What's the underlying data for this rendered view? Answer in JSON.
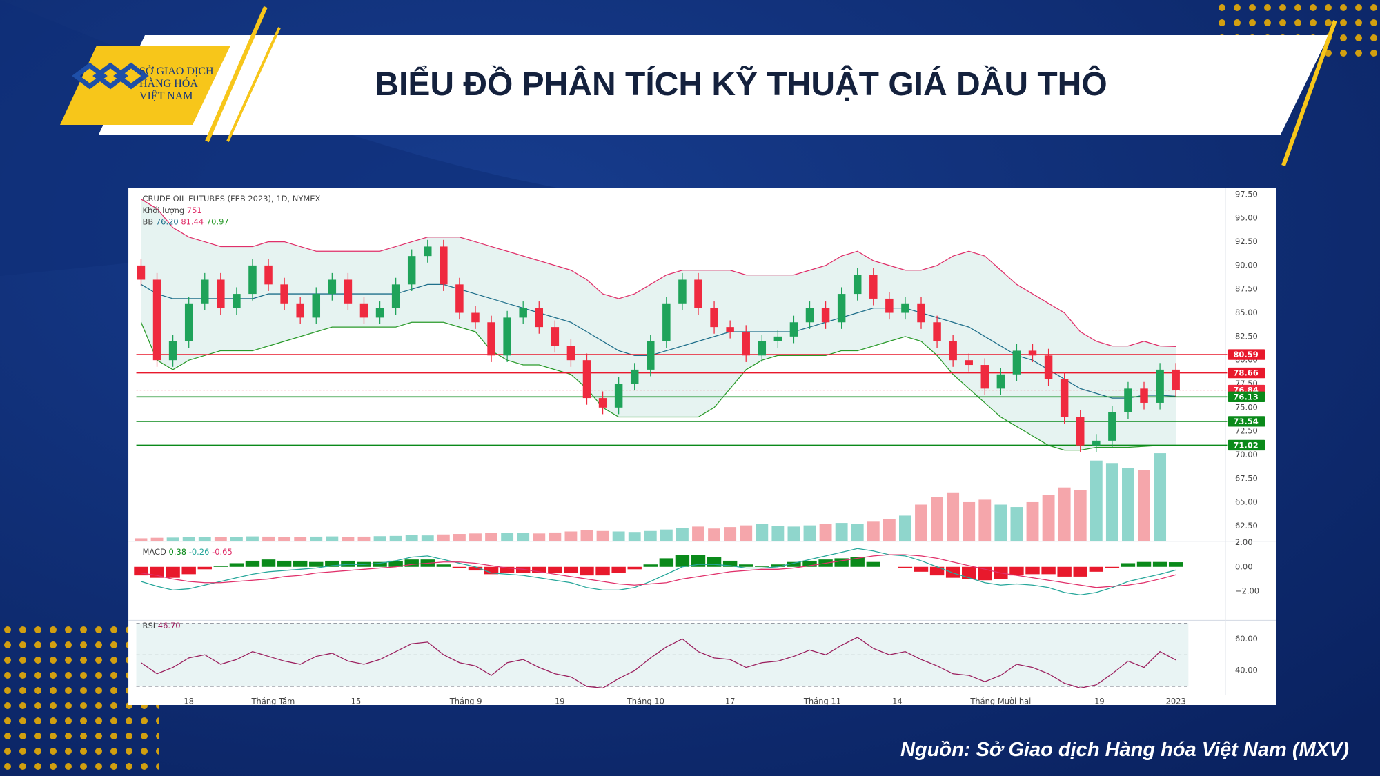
{
  "header": {
    "title": "BIỂU ĐỒ PHÂN TÍCH KỸ THUẬT GIÁ DẦU THÔ",
    "logo": [
      "SỞ GIAO DỊCH",
      "HÀNG HÓA",
      "VIỆT NAM"
    ]
  },
  "source": "Nguồn: Sở Giao dịch Hàng hóa Việt Nam (MXV)",
  "chart_data": {
    "type": "candlestick",
    "legend": {
      "title": "CRUDE OIL FUTURES (FEB 2023), 1D, NYMEX",
      "volume": {
        "label": "Khối lượng",
        "value": "751"
      },
      "bb": {
        "label": "BB",
        "values": [
          "76.20",
          "81.44",
          "70.97"
        ]
      },
      "macd": {
        "label": "MACD",
        "values": [
          "0.38",
          "-0.26",
          "-0.65"
        ]
      },
      "rsi": {
        "label": "RSI",
        "value": "46.70"
      }
    },
    "colors": {
      "up": "#1fa35a",
      "down": "#ef2a3f",
      "volume_up": "#8fd6cc",
      "volume_down": "#f5a6ab",
      "bb_upper": "#e0306a",
      "bb_mid": "#1f6f8b",
      "bb_lower": "#2a9a2a",
      "bb_fill": "#e6f3f1",
      "macd": "#26a69a",
      "signal": "#e0306a",
      "hist_up": "#0a8a1a",
      "hist_down": "#e8192c",
      "rsi": "#9b1f5e",
      "rsi_fill": "#e9f4f4"
    },
    "xlim": [
      -0.3,
      68
    ],
    "xticks": [
      {
        "value": 3,
        "label": "18"
      },
      {
        "value": 8.3,
        "label": "Tháng Tám"
      },
      {
        "value": 13.5,
        "label": "15"
      },
      {
        "value": 20.4,
        "label": "Tháng 9"
      },
      {
        "value": 26.3,
        "label": "19"
      },
      {
        "value": 31.7,
        "label": "Tháng 10"
      },
      {
        "value": 37,
        "label": "17"
      },
      {
        "value": 42.8,
        "label": "Tháng 11"
      },
      {
        "value": 47.5,
        "label": "14"
      },
      {
        "value": 54,
        "label": "Tháng Mười hai"
      },
      {
        "value": 60.2,
        "label": "19"
      },
      {
        "value": 65,
        "label": "2023"
      }
    ],
    "ylim": [
      60.88,
      98.15
    ],
    "yticks": [
      {
        "value": 62.5,
        "label": "62.50"
      },
      {
        "value": 65,
        "label": "65.00"
      },
      {
        "value": 67.5,
        "label": "67.50"
      },
      {
        "value": 70,
        "label": "70.00"
      },
      {
        "value": 72.5,
        "label": "72.50"
      },
      {
        "value": 75,
        "label": "75.00"
      },
      {
        "value": 77.5,
        "label": "77.50"
      },
      {
        "value": 80,
        "label": "80.00"
      },
      {
        "value": 82.5,
        "label": "82.50"
      },
      {
        "value": 85,
        "label": "85.00"
      },
      {
        "value": 87.5,
        "label": "87.50"
      },
      {
        "value": 90,
        "label": "90.00"
      },
      {
        "value": 92.5,
        "label": "92.50"
      },
      {
        "value": 95,
        "label": "95.00"
      },
      {
        "value": 97.5,
        "label": "97.50"
      }
    ],
    "levels": [
      {
        "value": 80.59,
        "color": "#e8192c"
      },
      {
        "value": 78.66,
        "color": "#e8192c"
      },
      {
        "value": 76.84,
        "color": "#ef2a3f",
        "dotted": true
      },
      {
        "value": 76.13,
        "color": "#0a8a1a"
      },
      {
        "value": 73.54,
        "color": "#0a8a1a"
      },
      {
        "value": 71.02,
        "color": "#0a8a1a"
      }
    ],
    "open": [
      90,
      88.5,
      80,
      82,
      86,
      88.5,
      85.5,
      87,
      90,
      88,
      86,
      84.5,
      87,
      88.5,
      86,
      84.5,
      85.5,
      88,
      91,
      92,
      88,
      85,
      84,
      80.5,
      84.5,
      85.5,
      83.5,
      81.5,
      80,
      76,
      75,
      77.5,
      79,
      82,
      86,
      88.5,
      85.5,
      83.5,
      83,
      80.5,
      82,
      82.5,
      84,
      85.5,
      84,
      87,
      89,
      86.5,
      85,
      86,
      84,
      82,
      80,
      79.5,
      77,
      78.5,
      81,
      80.5,
      78,
      74,
      71,
      71.5,
      74.5,
      77,
      75.5,
      79
    ],
    "high": [
      90.7,
      89.2,
      82.7,
      86.7,
      89.2,
      89.2,
      87.7,
      90.7,
      90.7,
      88.7,
      86.7,
      87.7,
      89.2,
      89.2,
      86.7,
      86.2,
      88.7,
      91.7,
      92.7,
      92.7,
      88.7,
      85.7,
      84.7,
      85.2,
      86.2,
      86.2,
      84.2,
      82.2,
      80.7,
      76.7,
      78.2,
      79.7,
      82.7,
      86.7,
      89.2,
      89.2,
      86.2,
      84.2,
      83.7,
      82.7,
      83.2,
      84.7,
      86.2,
      86.2,
      87.7,
      89.7,
      89.7,
      87.2,
      86.7,
      86.7,
      84.7,
      82.7,
      80.7,
      80.2,
      79.2,
      81.7,
      81.7,
      81.2,
      78.7,
      74.7,
      72.2,
      75.2,
      77.7,
      77.7,
      79.7,
      79.7
    ],
    "low": [
      87.8,
      79.3,
      79.3,
      81.3,
      85.3,
      84.8,
      84.8,
      86.3,
      87.3,
      85.3,
      83.8,
      83.8,
      86.3,
      85.3,
      83.8,
      83.8,
      84.8,
      87.3,
      90.3,
      87.3,
      84.3,
      83.3,
      79.8,
      79.8,
      83.8,
      82.8,
      80.8,
      79.3,
      75.3,
      74.3,
      74.3,
      76.8,
      78.3,
      81.3,
      85.3,
      84.8,
      82.8,
      82.3,
      79.8,
      79.8,
      81.3,
      81.8,
      83.3,
      83.3,
      83.3,
      86.3,
      85.8,
      84.3,
      84.3,
      83.3,
      81.3,
      79.3,
      78.8,
      76.3,
      76.3,
      77.8,
      79.8,
      77.3,
      73.3,
      70.3,
      70.3,
      70.8,
      73.8,
      74.8,
      74.8,
      76.14
    ],
    "close": [
      88.5,
      80,
      82,
      86,
      88.5,
      85.5,
      87,
      90,
      88,
      86,
      84.5,
      87,
      88.5,
      86,
      84.5,
      85.5,
      88,
      91,
      92,
      88,
      85,
      84,
      80.5,
      84.5,
      85.5,
      83.5,
      81.5,
      80,
      76,
      75,
      77.5,
      79,
      82,
      86,
      88.5,
      85.5,
      83.5,
      83,
      80.5,
      82,
      82.5,
      84,
      85.5,
      84,
      87,
      89,
      86.5,
      85,
      86,
      84,
      82,
      80,
      79.5,
      77,
      78.5,
      81,
      80.5,
      78,
      74,
      71,
      71.5,
      74.5,
      77,
      75.5,
      79,
      76.84
    ],
    "bb_upper": [
      97,
      96,
      94,
      93,
      92.5,
      92,
      92,
      92,
      92.5,
      92.5,
      92,
      91.5,
      91.5,
      91.5,
      91.5,
      91.5,
      92,
      92.5,
      93,
      93,
      93,
      92.5,
      92,
      91.5,
      91,
      90.5,
      90,
      89.5,
      88.5,
      87,
      86.5,
      87,
      88,
      89,
      89.5,
      89.5,
      89.5,
      89.5,
      89,
      89,
      89,
      89,
      89.5,
      90,
      91,
      91.5,
      90.5,
      90,
      89.5,
      89.5,
      90,
      91,
      91.5,
      91,
      89.5,
      88,
      87,
      86,
      85,
      83,
      82,
      81.5,
      81.5,
      82,
      81.5,
      81.44
    ],
    "bb_mid": [
      88,
      87,
      86.5,
      86.5,
      86.5,
      86.5,
      86.5,
      86.5,
      87,
      87,
      87,
      87,
      87,
      87,
      87,
      87,
      87,
      87.5,
      88,
      88,
      87.5,
      87,
      86.5,
      86,
      85.5,
      85,
      84.5,
      84,
      83,
      82,
      81,
      80.5,
      80.5,
      81,
      81.5,
      82,
      82.5,
      83,
      83,
      83,
      83,
      83,
      83.5,
      84,
      84.5,
      85,
      85.5,
      85.5,
      85.5,
      85,
      84.5,
      84,
      83.5,
      82.5,
      81.5,
      80.5,
      80,
      79,
      78,
      77,
      76.5,
      76,
      76,
      76.3,
      76.3,
      76.2
    ],
    "bb_lower": [
      84,
      80,
      79,
      80,
      80.5,
      81,
      81,
      81,
      81.5,
      82,
      82.5,
      83,
      83.5,
      83.5,
      83.5,
      83.5,
      83.5,
      84,
      84,
      84,
      83.5,
      83,
      81,
      80,
      79.5,
      79.5,
      79,
      78.5,
      77,
      75,
      74,
      74,
      74,
      74,
      74,
      74,
      75,
      77,
      79,
      80,
      80.5,
      80.5,
      80.5,
      80.5,
      81,
      81,
      81.5,
      82,
      82.5,
      82,
      80.5,
      78.5,
      77,
      75.5,
      74,
      73,
      72,
      71,
      70.5,
      70.5,
      70.8,
      70.8,
      70.8,
      70.9,
      71,
      70.97
    ],
    "volume": [
      12000,
      14000,
      15000,
      16000,
      18000,
      17000,
      18000,
      20000,
      19000,
      18000,
      17000,
      19000,
      20000,
      18000,
      19000,
      21000,
      22000,
      25000,
      24000,
      28000,
      30000,
      32000,
      35000,
      33000,
      34000,
      32000,
      36000,
      40000,
      45000,
      42000,
      40000,
      38000,
      42000,
      48000,
      55000,
      60000,
      52000,
      58000,
      65000,
      70000,
      62000,
      60000,
      65000,
      70000,
      75000,
      72000,
      80000,
      90000,
      105000,
      150000,
      180000,
      200000,
      160000,
      170000,
      150000,
      140000,
      160000,
      190000,
      220000,
      210000,
      330000,
      320000,
      300000,
      290000,
      360000,
      751
    ],
    "volume_lim": [
      0,
      396000
    ],
    "macd_ylim": [
      -4.4,
      2.1
    ],
    "macd_yticks": [
      {
        "value": 2,
        "label": "2.00"
      },
      {
        "value": 0,
        "label": "0.00"
      },
      {
        "value": -2,
        "label": "−2.00"
      }
    ],
    "macd": [
      -1.2,
      -1.6,
      -1.9,
      -1.8,
      -1.5,
      -1.2,
      -0.9,
      -0.6,
      -0.4,
      -0.3,
      -0.2,
      -0.1,
      0.1,
      0.2,
      0.2,
      0.3,
      0.5,
      0.8,
      0.9,
      0.6,
      0.3,
      0.0,
      -0.5,
      -0.6,
      -0.7,
      -0.9,
      -1.1,
      -1.3,
      -1.7,
      -1.9,
      -1.9,
      -1.7,
      -1.2,
      -0.6,
      0.0,
      0.2,
      0.2,
      0.1,
      -0.1,
      -0.1,
      0.0,
      0.3,
      0.6,
      0.9,
      1.2,
      1.5,
      1.3,
      1.0,
      0.9,
      0.5,
      0.0,
      -0.5,
      -0.9,
      -1.3,
      -1.5,
      -1.4,
      -1.5,
      -1.7,
      -2.1,
      -2.3,
      -2.1,
      -1.7,
      -1.2,
      -0.9,
      -0.6,
      -0.26
    ],
    "signal": [
      -0.5,
      -0.7,
      -1.0,
      -1.2,
      -1.3,
      -1.3,
      -1.2,
      -1.1,
      -1.0,
      -0.8,
      -0.7,
      -0.5,
      -0.4,
      -0.3,
      -0.2,
      -0.1,
      0.0,
      0.2,
      0.3,
      0.4,
      0.4,
      0.3,
      0.1,
      -0.1,
      -0.2,
      -0.4,
      -0.6,
      -0.8,
      -1.0,
      -1.2,
      -1.4,
      -1.5,
      -1.4,
      -1.3,
      -1.0,
      -0.8,
      -0.6,
      -0.4,
      -0.3,
      -0.2,
      -0.2,
      -0.1,
      0.1,
      0.3,
      0.5,
      0.7,
      0.9,
      1.0,
      1.0,
      0.9,
      0.7,
      0.4,
      0.1,
      -0.2,
      -0.5,
      -0.7,
      -0.9,
      -1.1,
      -1.3,
      -1.5,
      -1.7,
      -1.6,
      -1.5,
      -1.3,
      -1.0,
      -0.65
    ],
    "hist": [
      -0.7,
      -0.9,
      -0.9,
      -0.6,
      -0.2,
      0.1,
      0.3,
      0.5,
      0.6,
      0.5,
      0.5,
      0.4,
      0.5,
      0.5,
      0.4,
      0.4,
      0.5,
      0.6,
      0.6,
      0.2,
      -0.1,
      -0.3,
      -0.6,
      -0.5,
      -0.5,
      -0.5,
      -0.5,
      -0.5,
      -0.7,
      -0.7,
      -0.5,
      -0.2,
      0.2,
      0.7,
      1.0,
      1.0,
      0.8,
      0.5,
      0.2,
      0.1,
      0.2,
      0.4,
      0.5,
      0.6,
      0.7,
      0.8,
      0.4,
      0.0,
      -0.1,
      -0.4,
      -0.7,
      -0.9,
      -1.0,
      -1.1,
      -1.0,
      -0.7,
      -0.6,
      -0.6,
      -0.8,
      -0.8,
      -0.4,
      -0.1,
      0.3,
      0.4,
      0.4,
      0.38
    ],
    "rsi_ylim": [
      24.4,
      71.7
    ],
    "rsi_yticks": [
      {
        "value": 60,
        "label": "60.00"
      },
      {
        "value": 40,
        "label": "40.00"
      }
    ],
    "rsi_bands": [
      30,
      50,
      70
    ],
    "rsi": [
      45,
      38,
      42,
      48,
      50,
      44,
      47,
      52,
      49,
      46,
      44,
      49,
      51,
      46,
      44,
      47,
      52,
      57,
      58,
      50,
      45,
      43,
      37,
      45,
      47,
      42,
      38,
      36,
      30,
      29,
      35,
      40,
      48,
      55,
      60,
      52,
      48,
      47,
      42,
      45,
      46,
      49,
      53,
      50,
      56,
      61,
      54,
      50,
      52,
      47,
      43,
      38,
      37,
      33,
      37,
      44,
      42,
      38,
      32,
      29,
      31,
      38,
      46,
      42,
      52,
      46.7
    ]
  }
}
